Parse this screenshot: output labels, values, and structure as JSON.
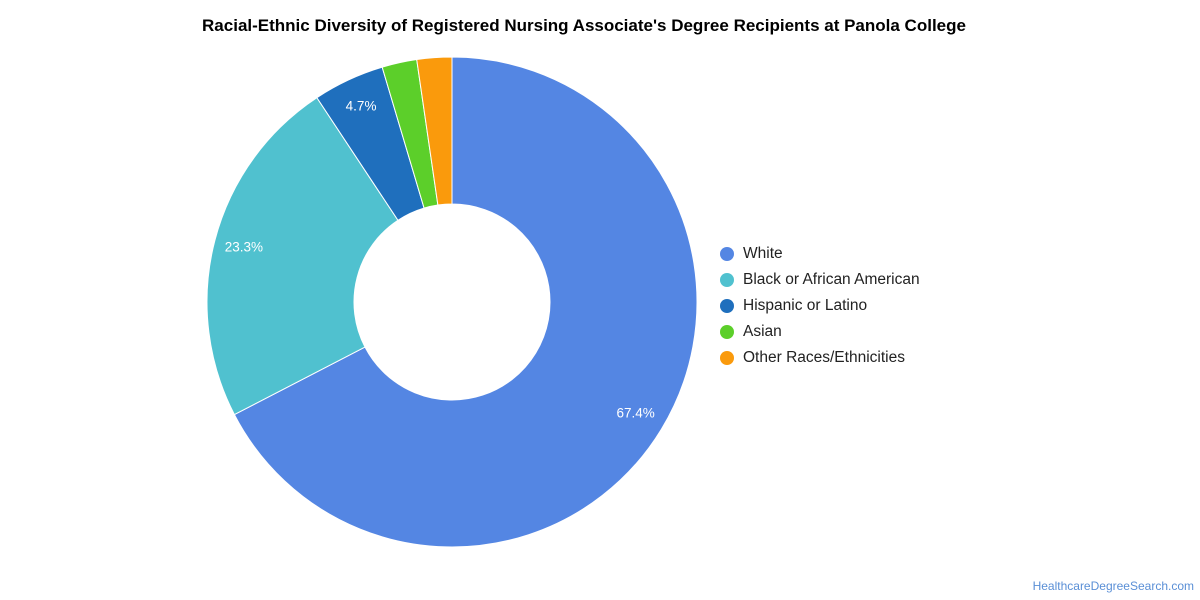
{
  "chart_data": {
    "type": "pie",
    "title": "Racial-Ethnic Diversity of Registered Nursing Associate's Degree Recipients at Panola College",
    "donut": true,
    "categories": [
      "White",
      "Black or African American",
      "Hispanic or Latino",
      "Asian",
      "Other Races/Ethnicities"
    ],
    "values": [
      67.4,
      23.3,
      4.7,
      2.3,
      2.3
    ],
    "data_labels": [
      "67.4%",
      "23.3%",
      "4.7%",
      "",
      ""
    ],
    "colors": [
      "#5486e3",
      "#50c1cf",
      "#1f6fbd",
      "#5ccf2a",
      "#fa9a0c"
    ],
    "legend_position": "right"
  },
  "footer": {
    "source": "HealthcareDegreeSearch.com"
  }
}
